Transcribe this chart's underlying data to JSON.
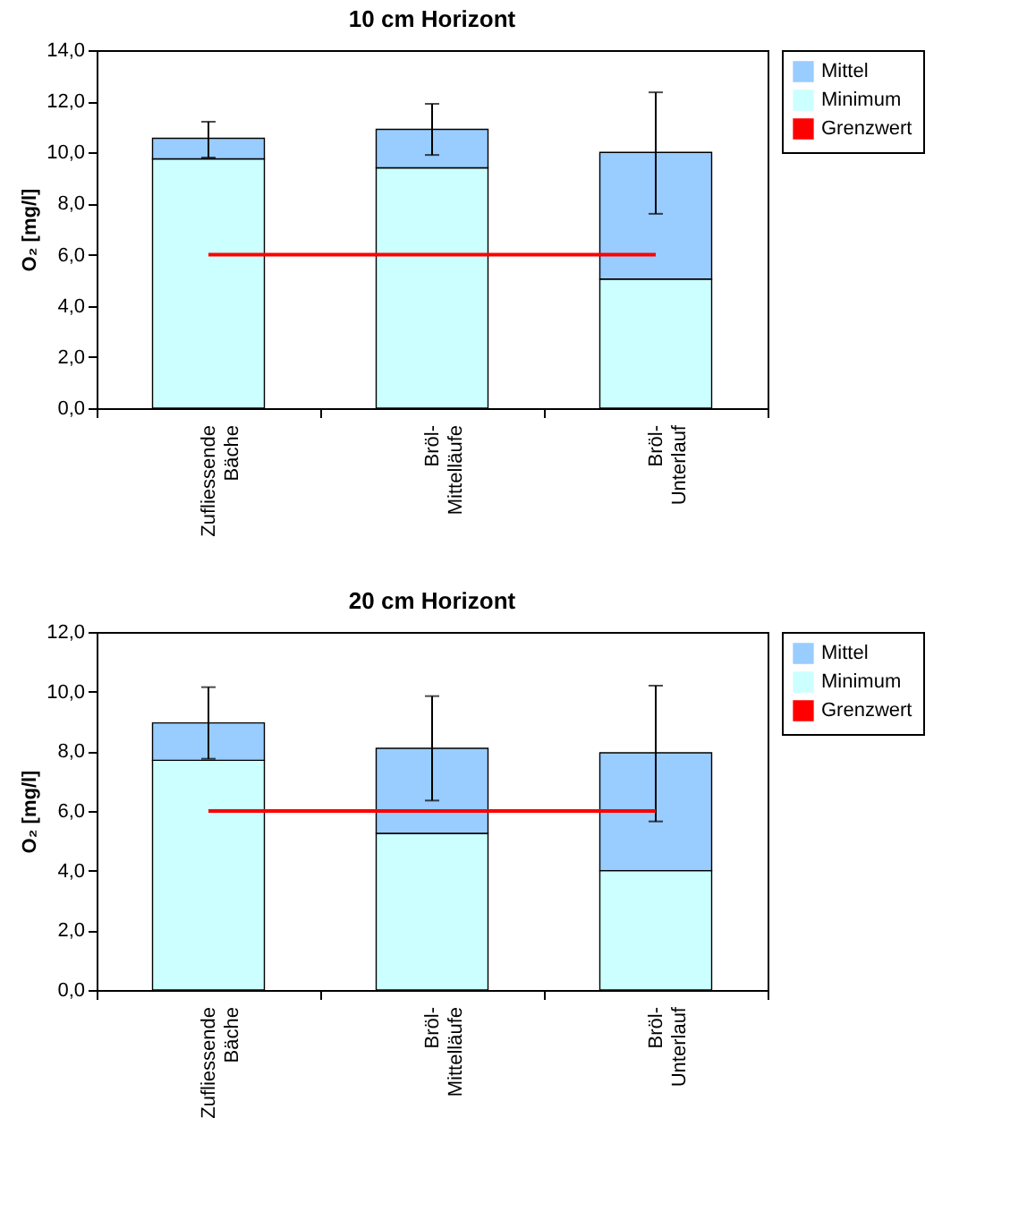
{
  "chart_data": [
    {
      "type": "bar",
      "title": "10 cm Horizont",
      "ylabel": "O₂ [mg/l]",
      "categories": [
        "Zufliessende\nBäche",
        "Bröl-\nMittelläufe",
        "Bröl-\nUnterlauf"
      ],
      "stacked": true,
      "series": [
        {
          "name": "Minimum",
          "color": "#ccffff",
          "values": [
            9.75,
            9.4,
            5.05
          ]
        },
        {
          "name": "Mittel",
          "color": "#99ccff",
          "values": [
            0.8,
            1.5,
            4.95
          ],
          "errors": [
            [
              9.8,
              11.2
            ],
            [
              9.9,
              11.9
            ],
            [
              7.6,
              12.35
            ]
          ]
        },
        {
          "name": "Grenzwert",
          "type": "line",
          "color": "#ff0000",
          "values": [
            6,
            6,
            6
          ]
        }
      ],
      "ylim": [
        0,
        14
      ],
      "yticks": [
        {
          "value": 0,
          "label": "0,0"
        },
        {
          "value": 2,
          "label": "2,0"
        },
        {
          "value": 4,
          "label": "4,0"
        },
        {
          "value": 6,
          "label": "6,0"
        },
        {
          "value": 8,
          "label": "8,0"
        },
        {
          "value": 10,
          "label": "10,0"
        },
        {
          "value": 12,
          "label": "12,0"
        },
        {
          "value": 14,
          "label": "14,0"
        }
      ],
      "grid": false,
      "legend": "right"
    },
    {
      "type": "bar",
      "title": "20 cm Horizont",
      "ylabel": "O₂ [mg/l]",
      "categories": [
        "Zufliessende\nBäche",
        "Bröl-\nMittelläufe",
        "Bröl-\nUnterlauf"
      ],
      "stacked": true,
      "series": [
        {
          "name": "Minimum",
          "color": "#ccffff",
          "values": [
            7.7,
            5.25,
            4.0
          ]
        },
        {
          "name": "Mittel",
          "color": "#99ccff",
          "values": [
            1.25,
            2.85,
            3.95
          ],
          "errors": [
            [
              7.75,
              10.15
            ],
            [
              6.35,
              9.85
            ],
            [
              5.65,
              10.2
            ]
          ]
        },
        {
          "name": "Grenzwert",
          "type": "line",
          "color": "#ff0000",
          "values": [
            6,
            6,
            6
          ]
        }
      ],
      "ylim": [
        0,
        12
      ],
      "yticks": [
        {
          "value": 0,
          "label": "0,0"
        },
        {
          "value": 2,
          "label": "2,0"
        },
        {
          "value": 4,
          "label": "4,0"
        },
        {
          "value": 6,
          "label": "6,0"
        },
        {
          "value": 8,
          "label": "8,0"
        },
        {
          "value": 10,
          "label": "10,0"
        },
        {
          "value": 12,
          "label": "12,0"
        }
      ],
      "grid": false,
      "legend": "right"
    }
  ]
}
